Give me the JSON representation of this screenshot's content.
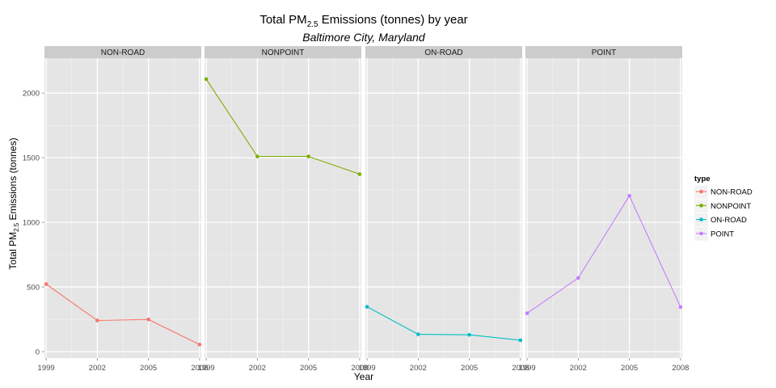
{
  "chart_data": {
    "type": "line",
    "title_main": "Total  PM",
    "title_sub": "2.5",
    "title_rest": "  Emissions (tonnes) by year",
    "subtitle": "Baltimore City, Maryland",
    "xlabel": "Year",
    "ylabel_main": "Total PM",
    "ylabel_sub": "2.5",
    "ylabel_rest": " Emissions (tonnes)",
    "x_ticks": [
      1999,
      2002,
      2005,
      2008
    ],
    "y_ticks": [
      0,
      500,
      1000,
      1500,
      2000
    ],
    "ylim": [
      -50,
      2270
    ],
    "xlim": [
      1998.9,
      2008.1
    ],
    "grid": true,
    "legend_title": "type",
    "legend_position": "right",
    "panels": [
      {
        "name": "NON-ROAD",
        "color": "#F8766D",
        "x": [
          1999,
          2002,
          2005,
          2008
        ],
        "y": [
          522,
          241,
          249,
          55
        ]
      },
      {
        "name": "NONPOINT",
        "color": "#7CAE00",
        "x": [
          1999,
          2002,
          2005,
          2008
        ],
        "y": [
          2108,
          1510,
          1510,
          1373
        ]
      },
      {
        "name": "ON-ROAD",
        "color": "#00BFC4",
        "x": [
          1999,
          2002,
          2005,
          2008
        ],
        "y": [
          347,
          134,
          130,
          88
        ]
      },
      {
        "name": "POINT",
        "color": "#C77CFF",
        "x": [
          1999,
          2002,
          2005,
          2008
        ],
        "y": [
          297,
          570,
          1205,
          345
        ]
      }
    ]
  }
}
